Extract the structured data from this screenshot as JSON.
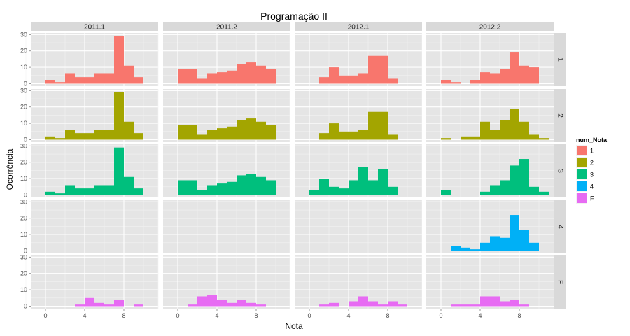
{
  "chart_data": {
    "type": "bar",
    "title": "Programação II",
    "xlabel": "Nota",
    "ylabel": "Ocorrência",
    "xlim": [
      -1.5,
      11.5
    ],
    "ylim": [
      -1.5,
      31
    ],
    "x_ticks": [
      0,
      4,
      8
    ],
    "y_ticks": [
      0,
      10,
      20,
      30
    ],
    "bin_width": 1,
    "columns": [
      "2011.1",
      "2011.2",
      "2012.1",
      "2012.2"
    ],
    "rows": [
      "1",
      "2",
      "3",
      "4",
      "F"
    ],
    "legend": {
      "title": "num_Nota",
      "placement": "right",
      "entries": [
        {
          "label": "1",
          "color": "#F8766D"
        },
        {
          "label": "2",
          "color": "#A3A500"
        },
        {
          "label": "3",
          "color": "#00BF7D"
        },
        {
          "label": "4",
          "color": "#00B0F6"
        },
        {
          "label": "F",
          "color": "#E76BF3"
        }
      ]
    },
    "series": [
      {
        "row": "1",
        "column": "2011.1",
        "bins": [
          [
            0,
            2
          ],
          [
            1,
            1
          ],
          [
            2,
            6
          ],
          [
            3,
            4
          ],
          [
            4,
            4
          ],
          [
            5,
            6
          ],
          [
            6,
            6
          ],
          [
            7,
            29
          ],
          [
            8,
            11
          ],
          [
            9,
            4
          ]
        ]
      },
      {
        "row": "1",
        "column": "2011.2",
        "bins": [
          [
            0,
            9
          ],
          [
            1,
            9
          ],
          [
            2,
            3
          ],
          [
            3,
            6
          ],
          [
            4,
            7
          ],
          [
            5,
            8
          ],
          [
            6,
            12
          ],
          [
            7,
            13
          ],
          [
            8,
            11
          ],
          [
            9,
            9
          ]
        ]
      },
      {
        "row": "1",
        "column": "2012.1",
        "bins": [
          [
            1,
            4
          ],
          [
            2,
            10
          ],
          [
            3,
            5
          ],
          [
            4,
            5
          ],
          [
            5,
            6
          ],
          [
            6,
            17
          ],
          [
            7,
            17
          ],
          [
            8,
            3
          ]
        ]
      },
      {
        "row": "1",
        "column": "2012.2",
        "bins": [
          [
            0,
            2
          ],
          [
            1,
            1
          ],
          [
            3,
            2
          ],
          [
            4,
            7
          ],
          [
            5,
            6
          ],
          [
            6,
            9
          ],
          [
            7,
            19
          ],
          [
            8,
            11
          ],
          [
            9,
            10
          ]
        ]
      },
      {
        "row": "2",
        "column": "2011.1",
        "bins": [
          [
            0,
            2
          ],
          [
            1,
            1
          ],
          [
            2,
            6
          ],
          [
            3,
            4
          ],
          [
            4,
            4
          ],
          [
            5,
            6
          ],
          [
            6,
            6
          ],
          [
            7,
            29
          ],
          [
            8,
            11
          ],
          [
            9,
            4
          ]
        ]
      },
      {
        "row": "2",
        "column": "2011.2",
        "bins": [
          [
            0,
            9
          ],
          [
            1,
            9
          ],
          [
            2,
            3
          ],
          [
            3,
            6
          ],
          [
            4,
            7
          ],
          [
            5,
            8
          ],
          [
            6,
            12
          ],
          [
            7,
            13
          ],
          [
            8,
            11
          ],
          [
            9,
            9
          ]
        ]
      },
      {
        "row": "2",
        "column": "2012.1",
        "bins": [
          [
            1,
            4
          ],
          [
            2,
            10
          ],
          [
            3,
            5
          ],
          [
            4,
            5
          ],
          [
            5,
            6
          ],
          [
            6,
            17
          ],
          [
            7,
            17
          ],
          [
            8,
            3
          ]
        ]
      },
      {
        "row": "2",
        "column": "2012.2",
        "bins": [
          [
            0,
            1
          ],
          [
            2,
            2
          ],
          [
            3,
            2
          ],
          [
            4,
            11
          ],
          [
            5,
            6
          ],
          [
            6,
            12
          ],
          [
            7,
            19
          ],
          [
            8,
            11
          ],
          [
            9,
            3
          ],
          [
            10,
            1
          ]
        ]
      },
      {
        "row": "3",
        "column": "2011.1",
        "bins": [
          [
            0,
            2
          ],
          [
            1,
            1
          ],
          [
            2,
            6
          ],
          [
            3,
            4
          ],
          [
            4,
            4
          ],
          [
            5,
            6
          ],
          [
            6,
            6
          ],
          [
            7,
            29
          ],
          [
            8,
            11
          ],
          [
            9,
            4
          ]
        ]
      },
      {
        "row": "3",
        "column": "2011.2",
        "bins": [
          [
            0,
            9
          ],
          [
            1,
            9
          ],
          [
            2,
            3
          ],
          [
            3,
            6
          ],
          [
            4,
            7
          ],
          [
            5,
            8
          ],
          [
            6,
            12
          ],
          [
            7,
            13
          ],
          [
            8,
            11
          ],
          [
            9,
            9
          ]
        ]
      },
      {
        "row": "3",
        "column": "2012.1",
        "bins": [
          [
            0,
            3
          ],
          [
            1,
            10
          ],
          [
            2,
            5
          ],
          [
            3,
            4
          ],
          [
            4,
            9
          ],
          [
            5,
            17
          ],
          [
            6,
            9
          ],
          [
            7,
            16
          ],
          [
            8,
            5
          ]
        ]
      },
      {
        "row": "3",
        "column": "2012.2",
        "bins": [
          [
            0,
            3
          ],
          [
            4,
            2
          ],
          [
            5,
            6
          ],
          [
            6,
            9
          ],
          [
            7,
            18
          ],
          [
            8,
            22
          ],
          [
            9,
            5
          ],
          [
            10,
            2
          ]
        ]
      },
      {
        "row": "4",
        "column": "2012.2",
        "bins": [
          [
            1,
            3
          ],
          [
            2,
            2
          ],
          [
            3,
            1
          ],
          [
            4,
            5
          ],
          [
            5,
            9
          ],
          [
            6,
            8
          ],
          [
            7,
            22
          ],
          [
            8,
            13
          ],
          [
            9,
            5
          ]
        ]
      },
      {
        "row": "F",
        "column": "2011.1",
        "bins": [
          [
            3,
            1
          ],
          [
            4,
            5
          ],
          [
            5,
            2
          ],
          [
            6,
            1
          ],
          [
            7,
            4
          ],
          [
            9,
            1
          ]
        ]
      },
      {
        "row": "F",
        "column": "2011.2",
        "bins": [
          [
            1,
            1
          ],
          [
            2,
            6
          ],
          [
            3,
            7
          ],
          [
            4,
            4
          ],
          [
            5,
            2
          ],
          [
            6,
            4
          ],
          [
            7,
            2
          ],
          [
            8,
            1
          ]
        ]
      },
      {
        "row": "F",
        "column": "2012.1",
        "bins": [
          [
            1,
            1
          ],
          [
            2,
            2
          ],
          [
            4,
            3
          ],
          [
            5,
            6
          ],
          [
            6,
            3
          ],
          [
            7,
            1
          ],
          [
            8,
            3
          ],
          [
            9,
            1
          ]
        ]
      },
      {
        "row": "F",
        "column": "2012.2",
        "bins": [
          [
            1,
            1
          ],
          [
            2,
            1
          ],
          [
            3,
            1
          ],
          [
            4,
            6
          ],
          [
            5,
            6
          ],
          [
            6,
            3
          ],
          [
            7,
            4
          ],
          [
            8,
            1
          ]
        ]
      }
    ]
  }
}
